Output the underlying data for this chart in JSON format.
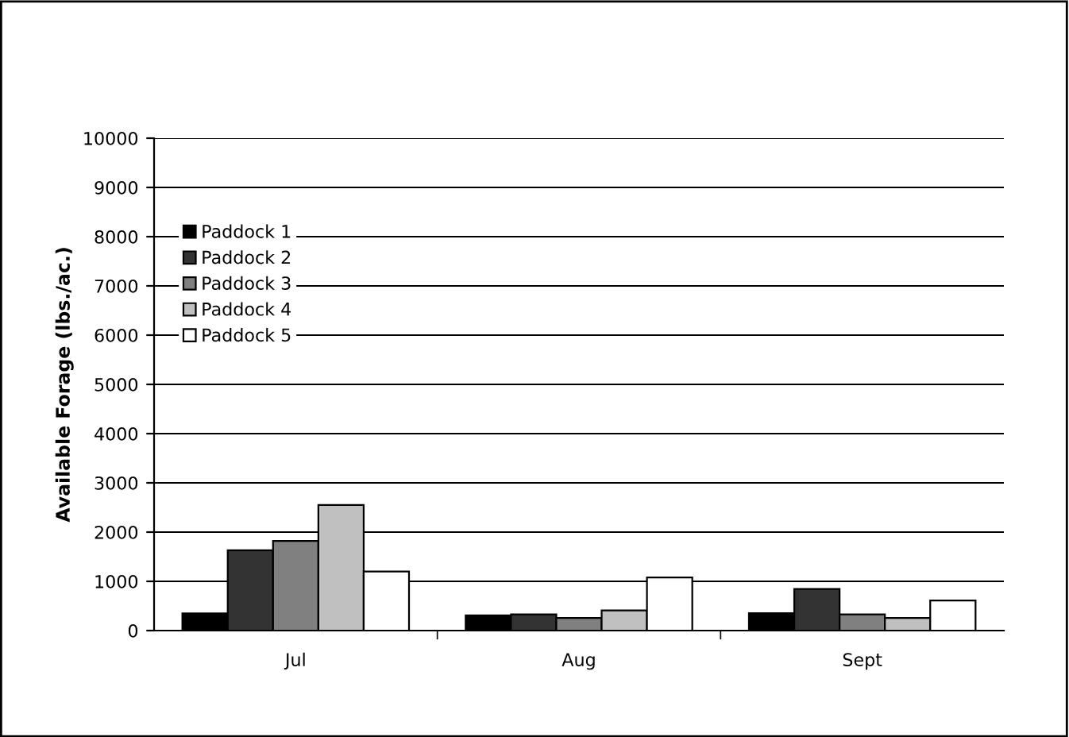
{
  "chart_data": {
    "type": "bar",
    "ylabel": "Available Forage (lbs./ac.)",
    "categories": [
      "Jul",
      "Aug",
      "Sept"
    ],
    "series": [
      {
        "name": "Paddock 1",
        "color": "#000000",
        "values": [
          350,
          310,
          355
        ]
      },
      {
        "name": "Paddock 2",
        "color": "#333333",
        "values": [
          1630,
          330,
          845
        ]
      },
      {
        "name": "Paddock 3",
        "color": "#808080",
        "values": [
          1820,
          255,
          330
        ]
      },
      {
        "name": "Paddock 4",
        "color": "#c0c0c0",
        "values": [
          2550,
          410,
          255
        ]
      },
      {
        "name": "Paddock 5",
        "color": "#ffffff",
        "values": [
          1200,
          1080,
          610
        ]
      }
    ],
    "ylim": [
      0,
      10000
    ],
    "yticks": [
      0,
      1000,
      2000,
      3000,
      4000,
      5000,
      6000,
      7000,
      8000,
      9000,
      10000
    ],
    "grid": "y",
    "legend": "top left"
  }
}
